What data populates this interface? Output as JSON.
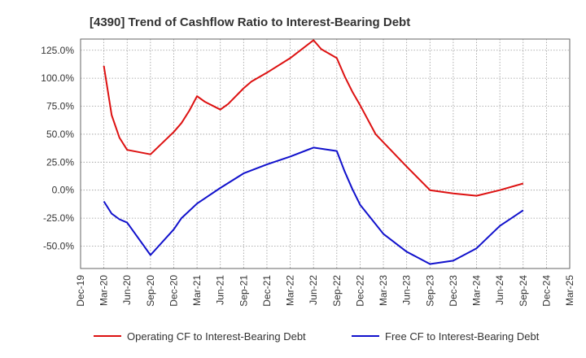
{
  "chart_data": {
    "type": "line",
    "title": "[4390]  Trend of Cashflow Ratio to Interest-Bearing Debt",
    "xlabel": "",
    "ylabel": "",
    "x_ticks": [
      "Dec-19",
      "Mar-20",
      "Jun-20",
      "Sep-20",
      "Dec-20",
      "Mar-21",
      "Jun-21",
      "Sep-21",
      "Dec-21",
      "Mar-22",
      "Jun-22",
      "Sep-22",
      "Dec-22",
      "Mar-23",
      "Jun-23",
      "Sep-23",
      "Dec-23",
      "Mar-24",
      "Jun-24",
      "Sep-24",
      "Dec-24",
      "Mar-25"
    ],
    "y_ticks": [
      "125.0%",
      "100.0%",
      "75.0%",
      "50.0%",
      "25.0%",
      "0.0%",
      "-25.0%",
      "-50.0%"
    ],
    "y_tick_values": [
      125,
      100,
      75,
      50,
      25,
      0,
      -25,
      -50
    ],
    "ylim": [
      -70,
      135
    ],
    "grid": true,
    "legend_position": "bottom",
    "series": [
      {
        "name": "Operating CF to Interest-Bearing Debt",
        "color": "#dd1111",
        "points": [
          [
            "Mar-20",
            111
          ],
          [
            "Apr-20",
            67
          ],
          [
            "May-20",
            47
          ],
          [
            "Jun-20",
            36
          ],
          [
            "Sep-20",
            32
          ],
          [
            "Dec-20",
            52
          ],
          [
            "Jan-21",
            60
          ],
          [
            "Feb-21",
            71
          ],
          [
            "Mar-21",
            84
          ],
          [
            "Apr-21",
            79
          ],
          [
            "Jun-21",
            72
          ],
          [
            "Jul-21",
            77
          ],
          [
            "Sep-21",
            91
          ],
          [
            "Oct-21",
            97
          ],
          [
            "Dec-21",
            105
          ],
          [
            "Mar-22",
            118
          ],
          [
            "Jun-22",
            134
          ],
          [
            "Jul-22",
            126
          ],
          [
            "Sep-22",
            118
          ],
          [
            "Oct-22",
            102
          ],
          [
            "Nov-22",
            88
          ],
          [
            "Dec-22",
            76
          ],
          [
            "Feb-23",
            50
          ],
          [
            "Jun-23",
            21
          ],
          [
            "Sep-23",
            0
          ],
          [
            "Dec-23",
            -3
          ],
          [
            "Mar-24",
            -5
          ],
          [
            "Jun-24",
            0
          ],
          [
            "Sep-24",
            6
          ]
        ]
      },
      {
        "name": "Free CF to Interest-Bearing Debt",
        "color": "#1111cc",
        "points": [
          [
            "Mar-20",
            -10
          ],
          [
            "Apr-20",
            -21
          ],
          [
            "May-20",
            -26
          ],
          [
            "Jun-20",
            -29
          ],
          [
            "Sep-20",
            -58
          ],
          [
            "Dec-20",
            -35
          ],
          [
            "Jan-21",
            -25
          ],
          [
            "Mar-21",
            -12
          ],
          [
            "Jun-21",
            2
          ],
          [
            "Sep-21",
            15
          ],
          [
            "Dec-21",
            23
          ],
          [
            "Mar-22",
            30
          ],
          [
            "Jun-22",
            38
          ],
          [
            "Sep-22",
            35
          ],
          [
            "Oct-22",
            17
          ],
          [
            "Nov-22",
            1
          ],
          [
            "Dec-22",
            -13
          ],
          [
            "Mar-23",
            -39
          ],
          [
            "Jun-23",
            -55
          ],
          [
            "Sep-23",
            -66
          ],
          [
            "Dec-23",
            -63
          ],
          [
            "Mar-24",
            -52
          ],
          [
            "Jun-24",
            -32
          ],
          [
            "Sep-24",
            -18
          ]
        ]
      }
    ]
  }
}
